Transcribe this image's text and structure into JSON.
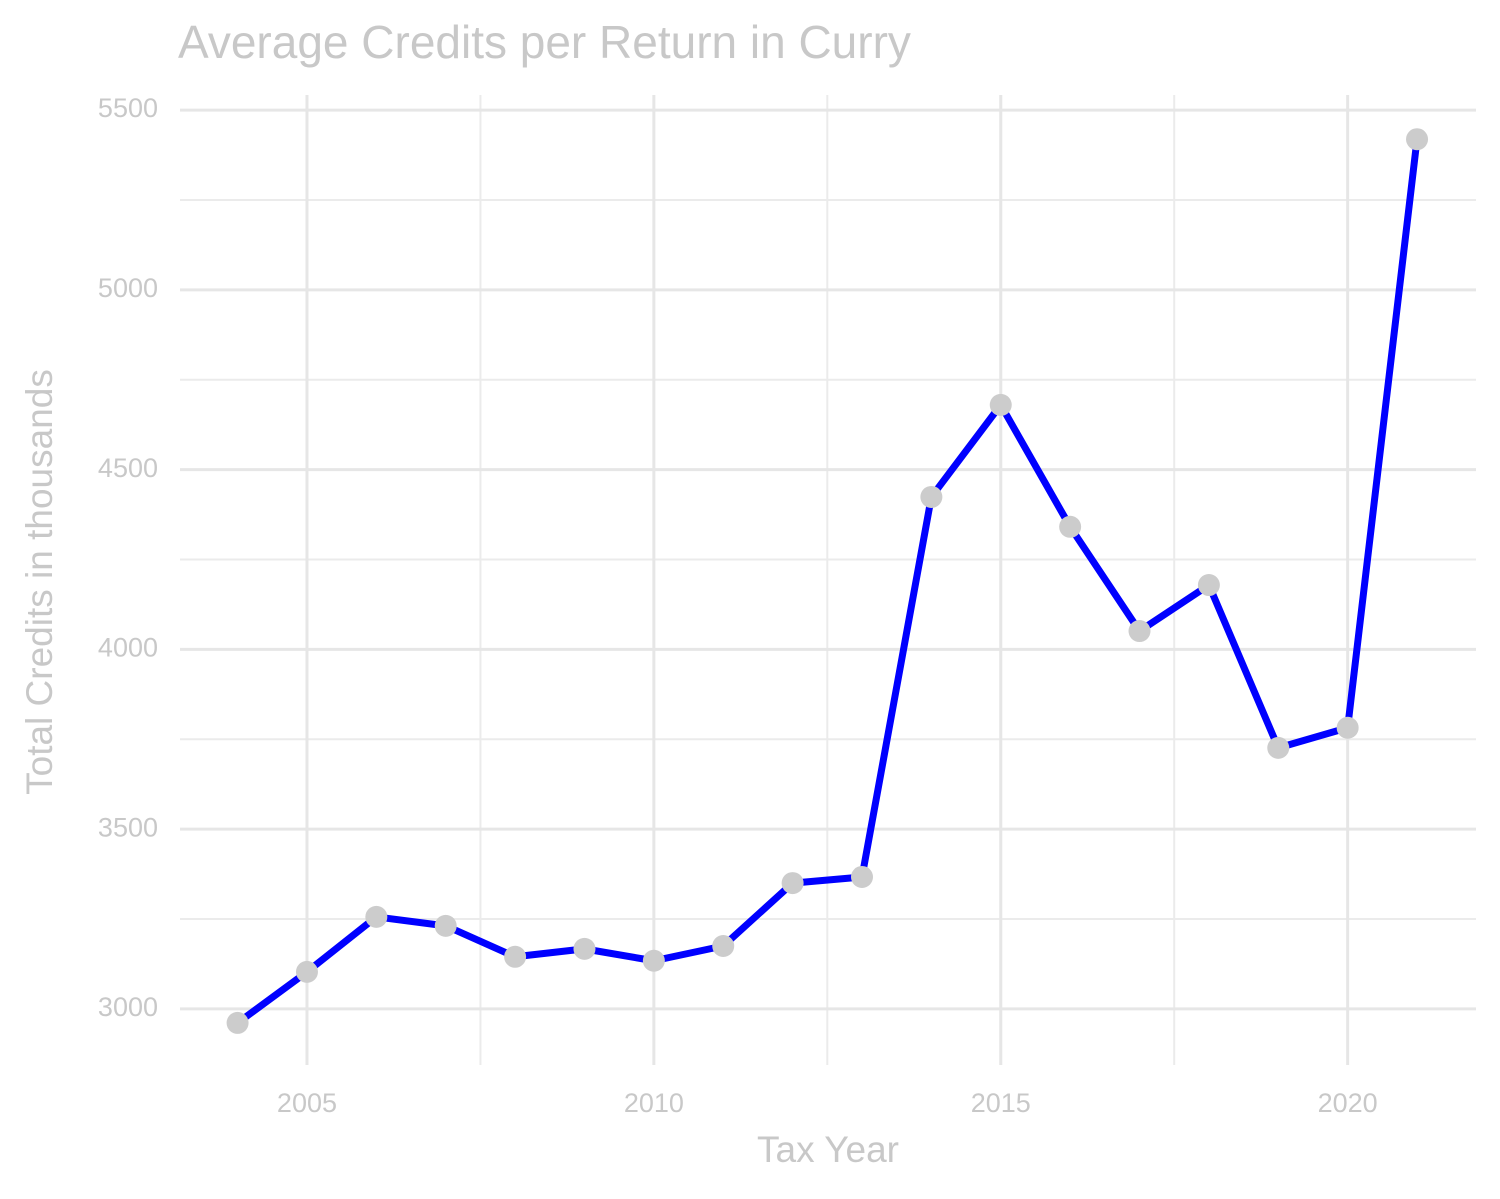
{
  "chart_data": {
    "type": "line",
    "title": "Average Credits per Return in Curry",
    "x_label": "Tax Year",
    "y_label": "Total Credits in thousands",
    "x": [
      2004,
      2005,
      2006,
      2007,
      2008,
      2009,
      2010,
      2011,
      2012,
      2013,
      2014,
      2015,
      2016,
      2017,
      2018,
      2019,
      2020,
      2021
    ],
    "series": [
      {
        "name": "Average Credits",
        "color": "#0000ff",
        "marker_color": "#cccccc",
        "values": [
          2961,
          3103,
          3256,
          3231,
          3145,
          3167,
          3134,
          3175,
          3350,
          3367,
          4424,
          4680,
          4341,
          4051,
          4179,
          3726,
          3782,
          5419
        ]
      }
    ],
    "xlim": [
      2003.17,
      2021.85
    ],
    "xticks": [
      2005,
      2010,
      2015,
      2020
    ],
    "ylim": [
      2844,
      5542
    ],
    "yticks": [
      3000,
      3500,
      4000,
      4500,
      5000,
      5500
    ],
    "grid": true,
    "minor_grid": true,
    "legend": false
  }
}
